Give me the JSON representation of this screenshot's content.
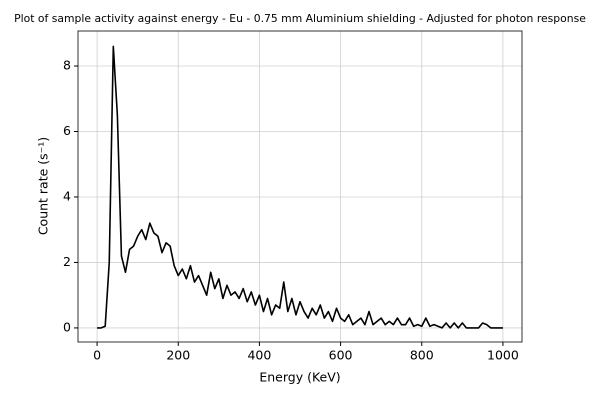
{
  "chart_data": {
    "type": "line",
    "title": "Plot of sample activity against energy - Eu - 0.75 mm Aluminium shielding - Adjusted for photon response",
    "x_label": "Energy (KeV)",
    "y_label": "Count rate (s⁻¹)",
    "x": [
      0,
      10,
      20,
      30,
      40,
      50,
      60,
      70,
      80,
      90,
      100,
      110,
      120,
      130,
      140,
      150,
      160,
      170,
      180,
      190,
      200,
      210,
      220,
      230,
      240,
      250,
      260,
      270,
      280,
      290,
      300,
      310,
      320,
      330,
      340,
      350,
      360,
      370,
      380,
      390,
      400,
      410,
      420,
      430,
      440,
      450,
      460,
      470,
      480,
      490,
      500,
      510,
      520,
      530,
      540,
      550,
      560,
      570,
      580,
      590,
      600,
      610,
      620,
      630,
      640,
      650,
      660,
      670,
      680,
      690,
      700,
      710,
      720,
      730,
      740,
      750,
      760,
      770,
      780,
      790,
      800,
      810,
      820,
      830,
      840,
      850,
      860,
      870,
      880,
      890,
      900,
      910,
      920,
      930,
      940,
      950,
      960,
      970,
      980,
      990,
      1000
    ],
    "series": [
      {
        "color": "#000000",
        "values": [
          0,
          0,
          0.05,
          2.0,
          8.6,
          6.5,
          2.2,
          1.7,
          2.4,
          2.5,
          2.8,
          3.0,
          2.7,
          3.2,
          2.9,
          2.8,
          2.3,
          2.6,
          2.5,
          1.9,
          1.6,
          1.8,
          1.5,
          1.9,
          1.4,
          1.6,
          1.3,
          1.0,
          1.7,
          1.2,
          1.5,
          0.9,
          1.3,
          1.0,
          1.1,
          0.9,
          1.2,
          0.8,
          1.1,
          0.7,
          1.0,
          0.5,
          0.9,
          0.4,
          0.7,
          0.6,
          1.4,
          0.5,
          0.9,
          0.4,
          0.8,
          0.5,
          0.3,
          0.6,
          0.4,
          0.7,
          0.3,
          0.5,
          0.2,
          0.6,
          0.3,
          0.2,
          0.4,
          0.1,
          0.2,
          0.3,
          0.1,
          0.5,
          0.1,
          0.2,
          0.3,
          0.1,
          0.2,
          0.1,
          0.3,
          0.1,
          0.1,
          0.3,
          0.05,
          0.1,
          0.05,
          0.3,
          0.05,
          0.1,
          0.05,
          0,
          0.15,
          0,
          0.15,
          0,
          0.15,
          0,
          0,
          0,
          0,
          0.15,
          0.1,
          0,
          0,
          0,
          0
        ]
      }
    ],
    "xlim": [
      -47,
      1047
    ],
    "ylim": [
      -0.43,
      9.07
    ],
    "xticks": [
      0,
      200,
      400,
      600,
      800,
      1000
    ],
    "yticks": [
      0,
      2,
      4,
      6,
      8
    ],
    "grid": true
  }
}
